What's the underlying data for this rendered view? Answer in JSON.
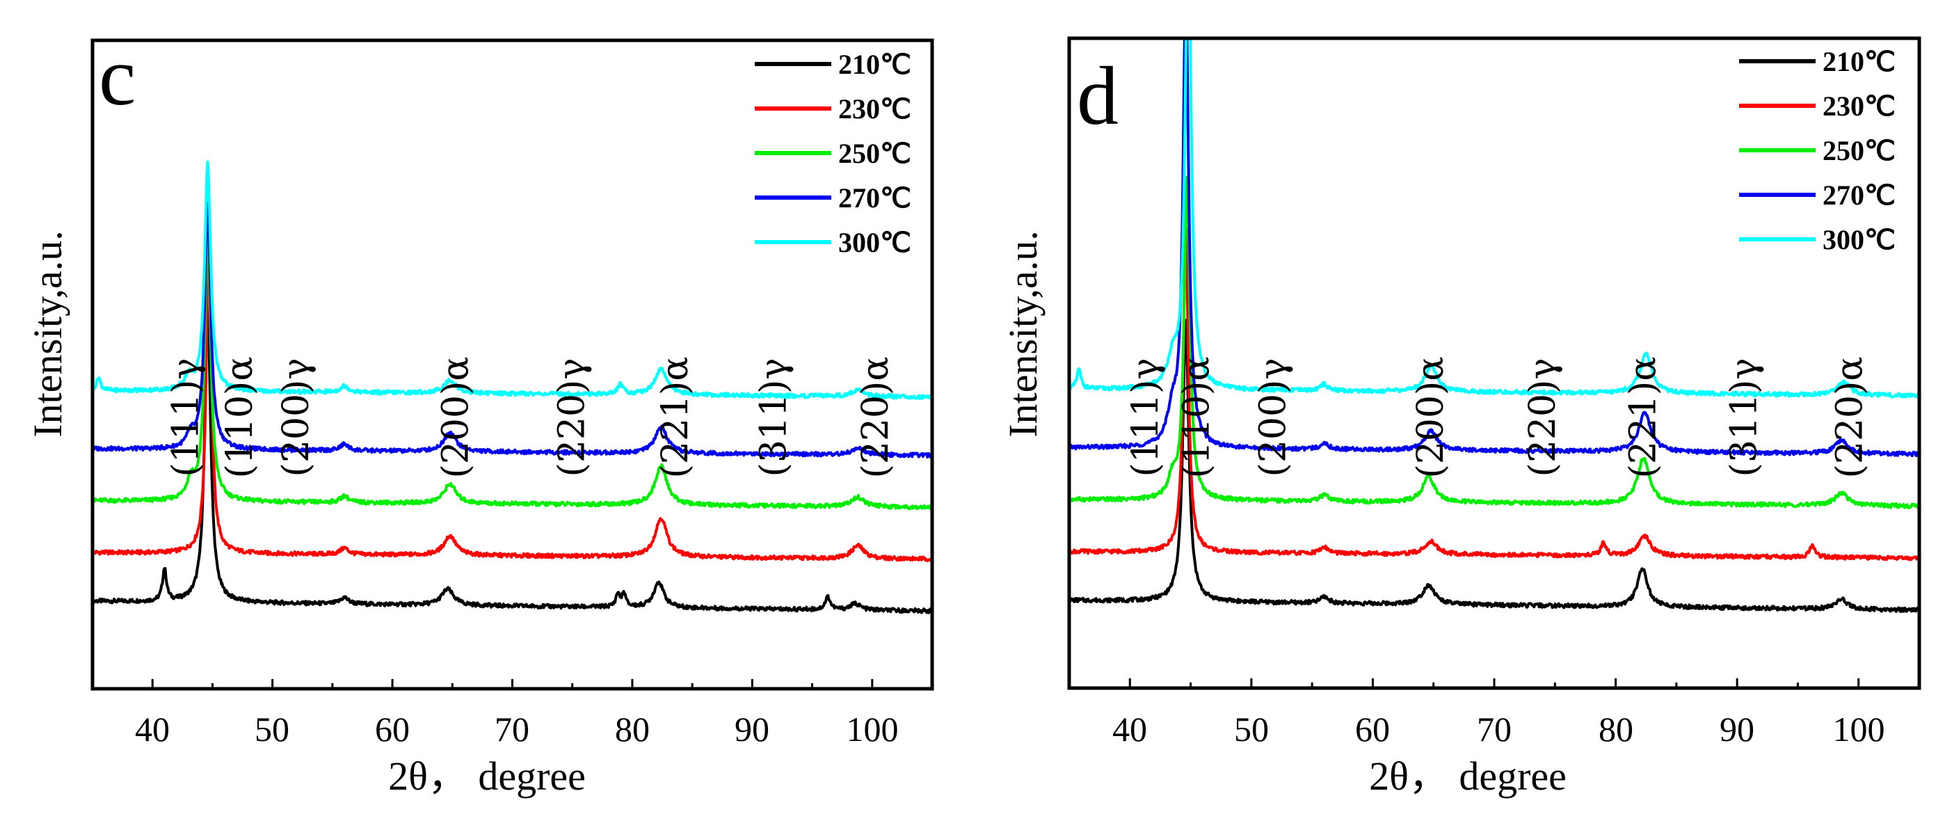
{
  "chart_data": [
    {
      "type": "line",
      "panel": "c",
      "xlabel": "2θ， degree",
      "ylabel": "Intensity,a.u.",
      "xlim": [
        35,
        105
      ],
      "x_ticks": [
        "40",
        "50",
        "60",
        "70",
        "80",
        "90",
        "100"
      ],
      "legend_position": "top-right",
      "peak_labels": [
        {
          "text": "(111)γ",
          "x": 43.0
        },
        {
          "text": "(110)α",
          "x": 47.5
        },
        {
          "text": "(200)γ",
          "x": 52.2
        },
        {
          "text": "(200)α",
          "x": 65.5
        },
        {
          "text": "(220)γ",
          "x": 75.2
        },
        {
          "text": "(221)α",
          "x": 83.8
        },
        {
          "text": "(311)γ",
          "x": 92.0
        },
        {
          "text": "(220)α",
          "x": 100.5
        }
      ],
      "series": [
        {
          "name": "210℃",
          "color": "#000000",
          "baseline": 0.12,
          "slope": 0.015,
          "peaks": [
            [
              41.0,
              0.05,
              0.2
            ],
            [
              44.6,
              0.46,
              0.3
            ],
            [
              56.0,
              0.01,
              0.4
            ],
            [
              64.6,
              0.025,
              0.6
            ],
            [
              78.8,
              0.02,
              0.2
            ],
            [
              79.3,
              0.02,
              0.2
            ],
            [
              82.2,
              0.04,
              0.5
            ],
            [
              96.3,
              0.02,
              0.25
            ],
            [
              98.6,
              0.01,
              0.5
            ]
          ]
        },
        {
          "name": "230℃",
          "color": "#ff0000",
          "baseline": 0.2,
          "slope": 0.01,
          "peaks": [
            [
              44.7,
              0.52,
              0.25
            ],
            [
              56.0,
              0.01,
              0.4
            ],
            [
              64.8,
              0.03,
              0.6
            ],
            [
              82.4,
              0.06,
              0.6
            ],
            [
              98.8,
              0.02,
              0.6
            ]
          ]
        },
        {
          "name": "250℃",
          "color": "#00ee00",
          "baseline": 0.28,
          "slope": 0.01,
          "peaks": [
            [
              43.2,
              0.03,
              0.4
            ],
            [
              44.6,
              0.42,
              0.3
            ],
            [
              56.0,
              0.01,
              0.4
            ],
            [
              64.8,
              0.03,
              0.6
            ],
            [
              82.4,
              0.06,
              0.6
            ],
            [
              98.8,
              0.015,
              0.6
            ]
          ]
        },
        {
          "name": "270℃",
          "color": "#0000ee",
          "baseline": 0.36,
          "slope": 0.01,
          "peaks": [
            [
              43.2,
              0.02,
              0.4
            ],
            [
              44.6,
              0.38,
              0.3
            ],
            [
              56.0,
              0.01,
              0.4
            ],
            [
              64.8,
              0.03,
              0.6
            ],
            [
              82.4,
              0.04,
              0.6
            ],
            [
              98.8,
              0.01,
              0.6
            ]
          ]
        },
        {
          "name": "300℃",
          "color": "#00ffff",
          "baseline": 0.45,
          "slope": 0.01,
          "peaks": [
            [
              35.5,
              0.02,
              0.2
            ],
            [
              43.0,
              0.02,
              0.4
            ],
            [
              44.6,
              0.35,
              0.3
            ],
            [
              56.0,
              0.01,
              0.4
            ],
            [
              64.8,
              0.02,
              0.6
            ],
            [
              79.0,
              0.015,
              0.3
            ],
            [
              82.4,
              0.04,
              0.6
            ],
            [
              98.8,
              0.01,
              0.6
            ]
          ]
        }
      ]
    },
    {
      "type": "line",
      "panel": "d",
      "xlabel": "2θ， degree",
      "ylabel": "Intensity,a.u.",
      "xlim": [
        35,
        105
      ],
      "x_ticks": [
        "40",
        "50",
        "60",
        "70",
        "80",
        "90",
        "100"
      ],
      "legend_position": "top-right",
      "peak_labels": [
        {
          "text": "(111)γ",
          "x": 41.5
        },
        {
          "text": "(110)α",
          "x": 45.7
        },
        {
          "text": "(200)γ",
          "x": 52.0
        },
        {
          "text": "(200)α",
          "x": 65.0
        },
        {
          "text": "(220)γ",
          "x": 74.2
        },
        {
          "text": "(221)α",
          "x": 82.5
        },
        {
          "text": "(311)γ",
          "x": 90.8
        },
        {
          "text": "(220)α",
          "x": 99.5
        }
      ],
      "series": [
        {
          "name": "210℃",
          "color": "#000000",
          "baseline": 0.12,
          "slope": 0.015,
          "peaks": [
            [
              44.6,
              0.43,
              0.3
            ],
            [
              56.0,
              0.01,
              0.4
            ],
            [
              64.6,
              0.03,
              0.6
            ],
            [
              82.2,
              0.06,
              0.5
            ],
            [
              98.6,
              0.015,
              0.6
            ]
          ]
        },
        {
          "name": "230℃",
          "color": "#ff0000",
          "baseline": 0.2,
          "slope": 0.01,
          "peaks": [
            [
              44.6,
              0.5,
              0.25
            ],
            [
              56.0,
              0.01,
              0.4
            ],
            [
              64.8,
              0.02,
              0.6
            ],
            [
              79.0,
              0.02,
              0.25
            ],
            [
              82.4,
              0.03,
              0.6
            ],
            [
              96.2,
              0.02,
              0.25
            ]
          ]
        },
        {
          "name": "250℃",
          "color": "#00ee00",
          "baseline": 0.28,
          "slope": 0.01,
          "peaks": [
            [
              43.5,
              0.03,
              0.4
            ],
            [
              44.7,
              0.5,
              0.28
            ],
            [
              56.0,
              0.01,
              0.4
            ],
            [
              64.6,
              0.04,
              0.6
            ],
            [
              82.3,
              0.07,
              0.6
            ],
            [
              98.6,
              0.02,
              0.6
            ]
          ]
        },
        {
          "name": "270℃",
          "color": "#0000ee",
          "baseline": 0.36,
          "slope": 0.01,
          "peaks": [
            [
              43.5,
              0.05,
              0.5
            ],
            [
              44.6,
              0.7,
              0.28
            ],
            [
              56.0,
              0.01,
              0.4
            ],
            [
              64.8,
              0.03,
              0.6
            ],
            [
              82.4,
              0.06,
              0.6
            ],
            [
              98.6,
              0.02,
              0.6
            ]
          ]
        },
        {
          "name": "300℃",
          "color": "#00ffff",
          "baseline": 0.45,
          "slope": 0.01,
          "peaks": [
            [
              35.8,
              0.03,
              0.2
            ],
            [
              43.5,
              0.04,
              0.5
            ],
            [
              44.8,
              0.75,
              0.28
            ],
            [
              56.0,
              0.01,
              0.4
            ],
            [
              64.8,
              0.04,
              0.6
            ],
            [
              82.5,
              0.06,
              0.6
            ],
            [
              98.8,
              0.02,
              0.6
            ]
          ]
        }
      ]
    }
  ]
}
